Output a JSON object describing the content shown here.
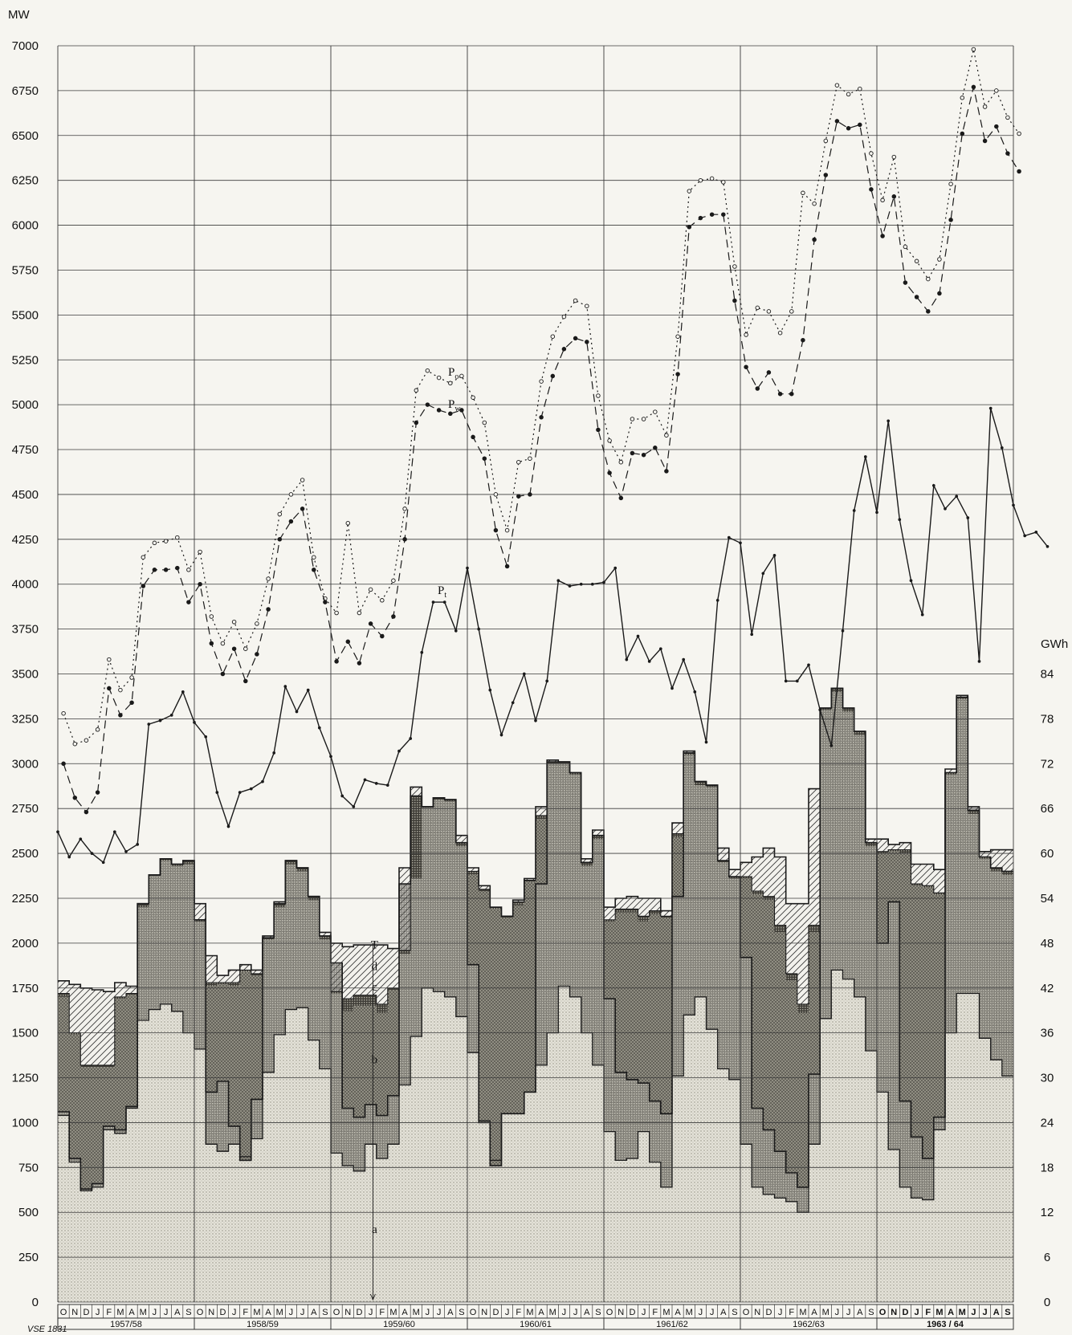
{
  "footer_code": "VSE 1831",
  "chart_data": {
    "type": "line",
    "y_unit_left": "MW",
    "y_unit_right": "GWh",
    "ylim_left": [
      0,
      7000
    ],
    "ylim_right": [
      0,
      168
    ],
    "yticks_left": [
      "0",
      "250",
      "500",
      "750",
      "1000",
      "1250",
      "1500",
      "1750",
      "2000",
      "2250",
      "2500",
      "2750",
      "3000",
      "3250",
      "3500",
      "3750",
      "4000",
      "4250",
      "4500",
      "4750",
      "5000",
      "5250",
      "5500",
      "5750",
      "6000",
      "6250",
      "6500",
      "6750",
      "7000"
    ],
    "yticks_right": [
      "0",
      "6",
      "12",
      "18",
      "24",
      "30",
      "36",
      "42",
      "48",
      "54",
      "60",
      "66",
      "72",
      "78",
      "84"
    ],
    "months": [
      "O",
      "N",
      "D",
      "J",
      "F",
      "M",
      "A",
      "M",
      "J",
      "J",
      "A",
      "S"
    ],
    "years": [
      "1957/58",
      "1958/59",
      "1959/60",
      "1960/61",
      "1961/62",
      "1962/63",
      "1963 / 64"
    ],
    "line_labels": [
      "P",
      "P",
      "P"
    ],
    "line_subscripts": [
      "o",
      "w",
      "t"
    ],
    "area_labels": [
      "T",
      "d",
      "c",
      "b",
      "a"
    ],
    "grid": true,
    "series": [
      {
        "name": "Po",
        "style": "dotted",
        "values": [
          3280,
          3110,
          3130,
          3190,
          3580,
          3410,
          3480,
          4150,
          4230,
          4240,
          4260,
          4080,
          4180,
          3820,
          3670,
          3790,
          3640,
          3780,
          4030,
          4390,
          4500,
          4580,
          4150,
          3920,
          3840,
          4340,
          3840,
          3970,
          3910,
          4020,
          4420,
          5080,
          5190,
          5150,
          5120,
          5160,
          5040,
          4900,
          4500,
          4300,
          4680,
          4700,
          5130,
          5380,
          5490,
          5580,
          5550,
          5050,
          4800,
          4680,
          4920,
          4920,
          4960,
          4830,
          5380,
          6190,
          6250,
          6260,
          6240,
          5770,
          5390,
          5540,
          5520,
          5400,
          5520,
          6180,
          6120,
          6470,
          6780,
          6730,
          6760,
          6400,
          6140,
          6380,
          5880,
          5800,
          5700,
          5810,
          6230,
          6710,
          6980,
          6660,
          6750,
          6600,
          6510
        ]
      },
      {
        "name": "Pw",
        "style": "dashed",
        "values": [
          3000,
          2810,
          2730,
          2840,
          3420,
          3270,
          3340,
          3990,
          4080,
          4080,
          4090,
          3900,
          4000,
          3670,
          3500,
          3640,
          3460,
          3610,
          3860,
          4250,
          4350,
          4420,
          4080,
          3900,
          3570,
          3680,
          3560,
          3780,
          3710,
          3820,
          4250,
          4900,
          5000,
          4970,
          4950,
          4970,
          4820,
          4700,
          4300,
          4100,
          4490,
          4500,
          4930,
          5160,
          5310,
          5370,
          5350,
          4860,
          4620,
          4480,
          4730,
          4720,
          4760,
          4630,
          5170,
          5990,
          6040,
          6060,
          6060,
          5580,
          5210,
          5090,
          5180,
          5060,
          5060,
          5360,
          5920,
          6280,
          6580,
          6540,
          6560,
          6200,
          5940,
          6160,
          5680,
          5600,
          5520,
          5620,
          6030,
          6510,
          6770,
          6470,
          6550,
          6400,
          6300
        ]
      },
      {
        "name": "Pt",
        "style": "solid",
        "values": [
          2620,
          2480,
          2580,
          2500,
          2450,
          2620,
          2510,
          2550,
          3220,
          3240,
          3270,
          3400,
          3230,
          3150,
          2840,
          2650,
          2840,
          2860,
          2900,
          3060,
          3430,
          3290,
          3410,
          3200,
          3040,
          2820,
          2760,
          2910,
          2890,
          2880,
          3070,
          3140,
          3620,
          3900,
          3900,
          3740,
          4090,
          3750,
          3410,
          3160,
          3340,
          3500,
          3240,
          3460,
          4020,
          3990,
          4000,
          4000,
          4010,
          4090,
          3580,
          3710,
          3570,
          3640,
          3420,
          3580,
          3400,
          3120,
          3910,
          4260,
          4230,
          3720,
          4060,
          4160,
          3460,
          3460,
          3550,
          3300,
          3100,
          3740,
          4410,
          4710,
          4400,
          4910,
          4360,
          4020,
          3830,
          4550,
          4420,
          4490,
          4370,
          3570,
          4980,
          4760,
          4440,
          4270,
          4290,
          4210
        ]
      }
    ],
    "area_series": [
      {
        "name": "total",
        "values": [
          1790,
          1770,
          1750,
          1740,
          1730,
          1780,
          1760,
          2220,
          2380,
          2470,
          2440,
          2460,
          2220,
          1930,
          1820,
          1850,
          1880,
          1850,
          2040,
          2230,
          2460,
          2420,
          2260,
          2060,
          2000,
          1980,
          1990,
          1990,
          1990,
          1970,
          2420,
          2870,
          2760,
          2810,
          2800,
          2600,
          2420,
          2320,
          2200,
          2150,
          2240,
          2360,
          2760,
          3020,
          3010,
          2950,
          2470,
          2630,
          2200,
          2250,
          2260,
          2250,
          2250,
          2180,
          2670,
          3070,
          2900,
          2880,
          2530,
          2410,
          2450,
          2480,
          2530,
          2480,
          2220,
          2220,
          2860,
          3310,
          3420,
          3310,
          3180,
          2580,
          2580,
          2550,
          2560,
          2440,
          2440,
          2410,
          2970,
          3380,
          2760,
          2510,
          2520,
          2520
        ]
      },
      {
        "name": "b_top",
        "values": [
          1720,
          1500,
          1320,
          1320,
          1320,
          1700,
          1720,
          2220,
          2380,
          2470,
          2440,
          2460,
          2130,
          1780,
          1780,
          1780,
          1850,
          1830,
          2030,
          2220,
          2460,
          2420,
          2260,
          2040,
          1730,
          1690,
          1710,
          1710,
          1660,
          1750,
          1960,
          2820,
          2760,
          2810,
          2800,
          2560,
          2400,
          2300,
          2200,
          2150,
          2230,
          2350,
          2710,
          3010,
          3010,
          2950,
          2450,
          2600,
          2130,
          2190,
          2190,
          2150,
          2180,
          2150,
          2610,
          3060,
          2900,
          2880,
          2460,
          2370,
          2370,
          2290,
          2260,
          2100,
          1830,
          1660,
          2100,
          3310,
          3420,
          3310,
          3180,
          2560,
          2510,
          2520,
          2520,
          2330,
          2320,
          2280,
          2950,
          3370,
          2740,
          2480,
          2420,
          2400
        ]
      },
      {
        "name": "c_top",
        "values": [
          1700,
          1490,
          1310,
          1310,
          1310,
          1690,
          1710,
          2200,
          2380,
          2460,
          2430,
          2440,
          2120,
          1760,
          1770,
          1760,
          1840,
          1820,
          2020,
          2200,
          2440,
          2400,
          2240,
          2020,
          1720,
          1620,
          1650,
          1650,
          1610,
          1740,
          1940,
          2360,
          2760,
          2800,
          2790,
          2540,
          2380,
          2290,
          2190,
          2140,
          2210,
          2340,
          2690,
          3000,
          3000,
          2940,
          2430,
          2580,
          2120,
          2170,
          2170,
          2120,
          2160,
          2140,
          2590,
          3050,
          2880,
          2870,
          2450,
          2360,
          2360,
          2270,
          2240,
          2060,
          1790,
          1610,
          2060,
          3300,
          3400,
          3290,
          3160,
          2540,
          2500,
          2510,
          2500,
          2320,
          2310,
          2270,
          2940,
          3360,
          2720,
          2470,
          2400,
          2380
        ]
      },
      {
        "name": "hydro",
        "values": [
          1060,
          800,
          630,
          660,
          980,
          960,
          1090,
          2220,
          2380,
          2470,
          2440,
          2460,
          2130,
          1170,
          1230,
          980,
          790,
          1130,
          2030,
          2220,
          2460,
          2420,
          2260,
          2040,
          1890,
          1080,
          1030,
          1100,
          1040,
          1150,
          2330,
          2820,
          2760,
          2810,
          2800,
          2560,
          1880,
          1000,
          760,
          1050,
          1050,
          1170,
          2330,
          3010,
          3010,
          2950,
          2450,
          2600,
          1690,
          1280,
          1240,
          1220,
          1120,
          1050,
          2260,
          3060,
          2900,
          2880,
          2460,
          2370,
          1920,
          1080,
          960,
          840,
          720,
          640,
          1270,
          3310,
          3420,
          3310,
          3180,
          2560,
          2000,
          2230,
          1120,
          920,
          800,
          1030,
          2950,
          3370,
          2740,
          2480,
          2420,
          2400
        ]
      },
      {
        "name": "baseline",
        "values": [
          1040,
          780,
          620,
          640,
          960,
          940,
          1080,
          1570,
          1630,
          1660,
          1620,
          1500,
          1410,
          880,
          840,
          880,
          810,
          910,
          1280,
          1490,
          1630,
          1640,
          1460,
          1300,
          830,
          760,
          730,
          880,
          800,
          880,
          1210,
          1480,
          1750,
          1730,
          1700,
          1590,
          1390,
          1010,
          790,
          1050,
          1050,
          1170,
          1320,
          1500,
          1760,
          1700,
          1500,
          1320,
          950,
          790,
          800,
          950,
          780,
          640,
          1260,
          1600,
          1700,
          1520,
          1300,
          1240,
          880,
          640,
          600,
          580,
          560,
          500,
          880,
          1580,
          1850,
          1800,
          1700,
          1400,
          1170,
          850,
          640,
          580,
          570,
          960,
          1500,
          1720,
          1720,
          1470,
          1350,
          1260
        ]
      }
    ]
  }
}
